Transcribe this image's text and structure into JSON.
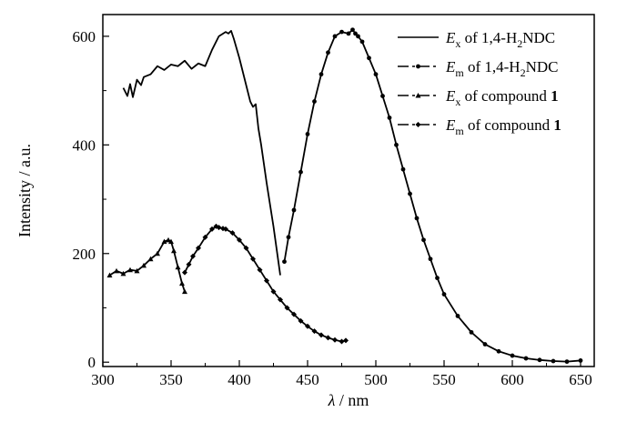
{
  "chart_data": {
    "type": "line",
    "xlabel": {
      "symbol": "λ",
      "unit": "nm"
    },
    "ylabel": {
      "text": "Intensity",
      "unit": "a.u."
    },
    "xlim": [
      300,
      660
    ],
    "ylim": [
      -8,
      640
    ],
    "x_ticks": [
      300,
      350,
      400,
      450,
      500,
      550,
      600,
      650
    ],
    "y_ticks": [
      0,
      200,
      400,
      600
    ],
    "grid": false,
    "legend_position": "top-right",
    "series": [
      {
        "name": "Ex of 1,4-H2NDC",
        "legend": {
          "symbol": "E",
          "sub": "x",
          "text": "of 1,4-H",
          "sub2": "2",
          "text2": "NDC",
          "bold": ""
        },
        "marker": "none",
        "dash": "solid",
        "x": [
          315,
          318,
          320,
          322,
          325,
          328,
          330,
          335,
          340,
          345,
          350,
          355,
          360,
          365,
          370,
          375,
          380,
          385,
          390,
          392,
          394,
          396,
          400,
          405,
          408,
          410,
          412,
          414,
          416,
          420,
          425,
          430
        ],
        "y": [
          505,
          490,
          512,
          488,
          520,
          510,
          525,
          530,
          545,
          538,
          548,
          545,
          555,
          540,
          550,
          545,
          575,
          600,
          608,
          605,
          610,
          595,
          560,
          510,
          480,
          470,
          475,
          430,
          400,
          330,
          250,
          160
        ]
      },
      {
        "name": "Em of 1,4-H2NDC",
        "legend": {
          "symbol": "E",
          "sub": "m",
          "text": "of 1,4-H",
          "sub2": "2",
          "text2": "NDC",
          "bold": ""
        },
        "marker": "circle",
        "dash": "dashdot",
        "x": [
          433,
          436,
          440,
          445,
          450,
          455,
          460,
          465,
          470,
          475,
          480,
          483,
          485,
          487,
          490,
          495,
          500,
          505,
          510,
          515,
          520,
          525,
          530,
          535,
          540,
          545,
          550,
          560,
          570,
          580,
          590,
          600,
          610,
          620,
          630,
          640,
          650
        ],
        "y": [
          185,
          230,
          280,
          350,
          420,
          480,
          530,
          570,
          600,
          608,
          605,
          612,
          605,
          600,
          590,
          560,
          530,
          490,
          450,
          400,
          355,
          310,
          265,
          225,
          190,
          155,
          125,
          85,
          55,
          33,
          20,
          12,
          7,
          4,
          2,
          1,
          3
        ]
      },
      {
        "name": "Ex of compound 1",
        "legend": {
          "symbol": "E",
          "sub": "x",
          "text": "of compound ",
          "sub2": "",
          "text2": "",
          "bold": "1"
        },
        "marker": "triangle",
        "dash": "dashdot",
        "x": [
          305,
          310,
          315,
          320,
          325,
          330,
          335,
          340,
          345,
          348,
          350,
          352,
          355,
          358,
          360
        ],
        "y": [
          160,
          168,
          163,
          170,
          168,
          178,
          190,
          200,
          222,
          225,
          222,
          205,
          175,
          145,
          130
        ]
      },
      {
        "name": "Em of compound 1",
        "legend": {
          "symbol": "E",
          "sub": "m",
          "text": "of compound ",
          "sub2": "",
          "text2": "",
          "bold": "1"
        },
        "marker": "diamond",
        "dash": "dashdot",
        "x": [
          360,
          363,
          366,
          370,
          375,
          380,
          383,
          385,
          388,
          390,
          395,
          400,
          405,
          410,
          415,
          420,
          425,
          430,
          435,
          440,
          445,
          450,
          455,
          460,
          465,
          470,
          475,
          478
        ],
        "y": [
          165,
          180,
          195,
          210,
          230,
          245,
          250,
          248,
          246,
          245,
          238,
          225,
          210,
          190,
          170,
          150,
          130,
          115,
          100,
          88,
          76,
          66,
          57,
          50,
          45,
          41,
          38,
          40
        ]
      }
    ]
  }
}
